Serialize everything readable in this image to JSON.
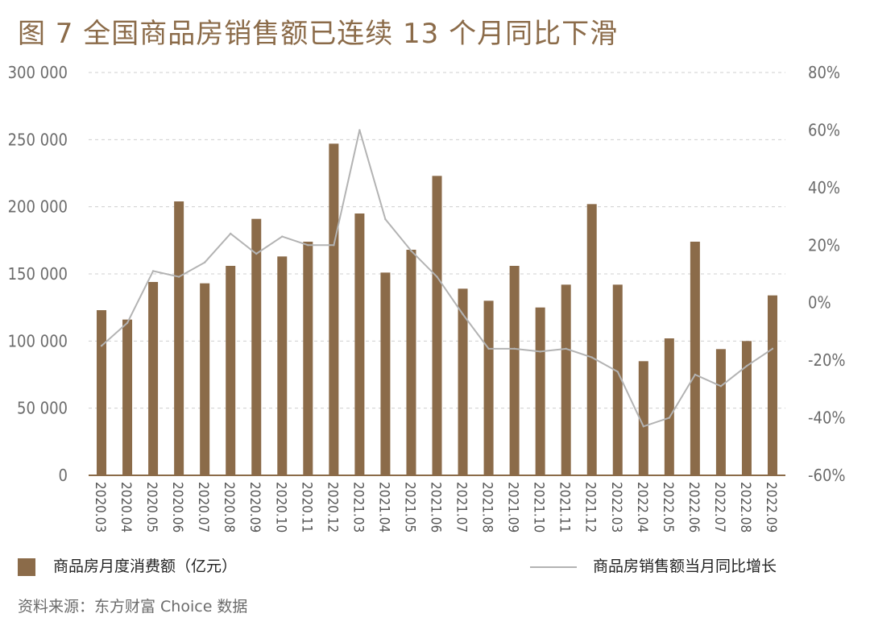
{
  "title": "图 7  全国商品房销售额已连续 13 个月同比下滑",
  "source": "资料来源：东方财富 Choice 数据",
  "legend": {
    "bar_label": "商品房月度消费额（亿元）",
    "line_label": "商品房销售额当月同比增长"
  },
  "colors": {
    "bar": "#8b6b49",
    "line": "#b3b3b3",
    "title": "#8b6b49",
    "grid": "#cfcfcf",
    "axis": "#8b6b49",
    "tick": "#6b6b6b"
  },
  "chart_data": {
    "type": "bar",
    "categories": [
      "2020.03",
      "2020.04",
      "2020.05",
      "2020.06",
      "2020.07",
      "2020.08",
      "2020.09",
      "2020.10",
      "2020.11",
      "2020.12",
      "2021.03",
      "2021.04",
      "2021.05",
      "2021.06",
      "2021.07",
      "2021.08",
      "2021.09",
      "2021.10",
      "2021.11",
      "2021.12",
      "2022.03",
      "2022.04",
      "2022.05",
      "2022.06",
      "2022.07",
      "2022.08",
      "2022.09"
    ],
    "series": [
      {
        "name": "商品房月度消费额（亿元）",
        "type": "bar",
        "axis": "left",
        "values": [
          123000,
          116000,
          144000,
          204000,
          143000,
          156000,
          191000,
          163000,
          174000,
          247000,
          195000,
          151000,
          168000,
          223000,
          139000,
          130000,
          156000,
          125000,
          142000,
          202000,
          142000,
          85000,
          102000,
          174000,
          94000,
          100000,
          134000
        ]
      },
      {
        "name": "商品房销售额当月同比增长",
        "type": "line",
        "axis": "right",
        "values": [
          -15,
          -7,
          11,
          9,
          14,
          24,
          17,
          23,
          20,
          20,
          60,
          29,
          18,
          9,
          -4,
          -16,
          -16,
          -17,
          -16,
          -19,
          -24,
          -43,
          -40,
          -25,
          -29,
          -22,
          -16
        ]
      }
    ],
    "y_left": {
      "range": [
        0,
        300000
      ],
      "ticks": [
        "0",
        "50 000",
        "100 000",
        "150 000",
        "200 000",
        "250 000",
        "300 000"
      ]
    },
    "y_right": {
      "range": [
        -60,
        80
      ],
      "ticks": [
        "-60%",
        "-40%",
        "-20%",
        "0%",
        "20%",
        "40%",
        "60%",
        "80%"
      ]
    },
    "grid": true,
    "legend_position": "bottom"
  }
}
